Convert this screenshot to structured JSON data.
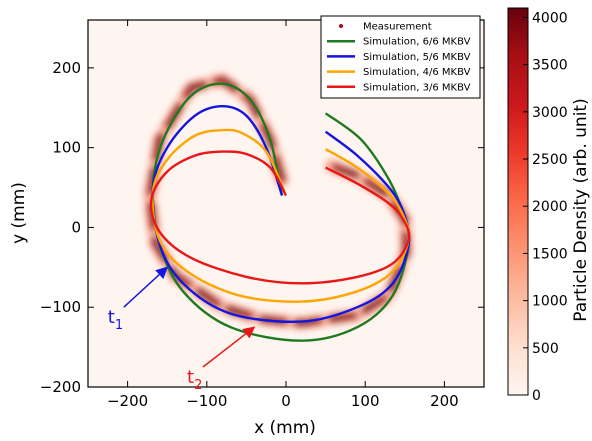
{
  "chart_data": {
    "type": "heatmap",
    "xlabel": "x (mm)",
    "ylabel": "y (mm)",
    "xlim": [
      -250,
      250
    ],
    "ylim": [
      -200,
      260
    ],
    "xticks": [
      -200,
      -100,
      0,
      100,
      200
    ],
    "yticks": [
      -200,
      -100,
      0,
      100,
      200
    ],
    "colorbar": {
      "label": "Particle Density (arb. unit)",
      "range": [
        0,
        4100
      ],
      "ticks": [
        0,
        500,
        1000,
        1500,
        2000,
        2500,
        3000,
        3500,
        4000
      ],
      "colormap": "Reds",
      "color_low": "#fff5f0",
      "color_high": "#67000d"
    },
    "legend": {
      "position": "top-right",
      "entries": [
        {
          "label": "Measurement",
          "color": "#a50f15",
          "marker": "dot"
        },
        {
          "label": "Simulation, 6/6 MKBV",
          "color": "#1f7a1f"
        },
        {
          "label": "Simulation, 5/6 MKBV",
          "color": "#1515e0"
        },
        {
          "label": "Simulation, 4/6 MKBV",
          "color": "#ffa500"
        },
        {
          "label": "Simulation, 3/6 MKBV",
          "color": "#e81818"
        }
      ]
    },
    "series": [
      {
        "name": "Simulation, 6/6 MKBV",
        "color": "#1f7a1f",
        "x": [
          -5,
          -20,
          -45,
          -80,
          -120,
          -155,
          -168,
          -160,
          -130,
          -70,
          20,
          90,
          135,
          155,
          147,
          130,
          95,
          50
        ],
        "y": [
          40,
          110,
          160,
          180,
          165,
          110,
          50,
          -20,
          -80,
          -125,
          -142,
          -125,
          -85,
          -20,
          20,
          60,
          110,
          143
        ]
      },
      {
        "name": "Simulation, 5/6 MKBV",
        "color": "#1515e0",
        "x": [
          -5,
          -25,
          -50,
          -80,
          -115,
          -150,
          -168,
          -160,
          -130,
          -70,
          20,
          90,
          135,
          155,
          148,
          130,
          90,
          50
        ],
        "y": [
          40,
          100,
          140,
          152,
          140,
          100,
          50,
          -20,
          -70,
          -108,
          -118,
          -100,
          -70,
          -20,
          20,
          50,
          90,
          120
        ]
      },
      {
        "name": "Simulation, 4/6 MKBV",
        "color": "#ffa500",
        "x": [
          -2,
          -25,
          -55,
          -80,
          -115,
          -150,
          -168,
          -160,
          -125,
          -60,
          20,
          90,
          135,
          155,
          148,
          130,
          90,
          50
        ],
        "y": [
          45,
          95,
          118,
          122,
          115,
          85,
          45,
          -15,
          -55,
          -85,
          -93,
          -80,
          -55,
          -15,
          15,
          42,
          75,
          98
        ]
      },
      {
        "name": "Simulation, 3/6 MKBV",
        "color": "#e81818",
        "x": [
          0,
          -20,
          -50,
          -80,
          -115,
          -150,
          -170,
          -160,
          -120,
          -50,
          20,
          90,
          135,
          155,
          148,
          130,
          90,
          50
        ],
        "y": [
          40,
          75,
          92,
          95,
          90,
          70,
          35,
          -5,
          -38,
          -62,
          -70,
          -62,
          -45,
          -15,
          10,
          30,
          55,
          75
        ]
      }
    ],
    "measurement_band": {
      "x": [
        -5,
        -20,
        -45,
        -80,
        -120,
        -160,
        -172,
        -165,
        -140,
        -80,
        -30,
        20,
        90,
        130,
        152,
        150,
        130,
        90,
        50
      ],
      "y": [
        60,
        110,
        160,
        185,
        175,
        110,
        40,
        -20,
        -60,
        -100,
        -115,
        -120,
        -110,
        -85,
        -30,
        10,
        40,
        65,
        80
      ]
    },
    "annotations": [
      {
        "text": "t",
        "sub": "1",
        "color": "#1515e0",
        "text_at": [
          -225,
          -120
        ],
        "arrow_to": [
          -150,
          -50
        ]
      },
      {
        "text": "t",
        "sub": "2",
        "color": "#e81818",
        "text_at": [
          -125,
          -195
        ],
        "arrow_to": [
          -40,
          -125
        ]
      }
    ]
  }
}
